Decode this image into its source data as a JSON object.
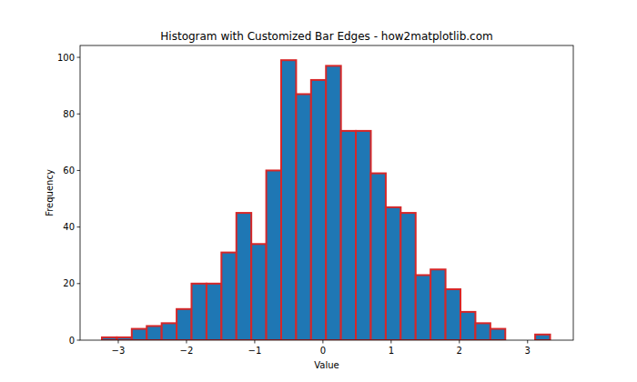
{
  "chart_data": {
    "type": "histogram",
    "title": "Histogram with Customized Bar Edges - how2matplotlib.com",
    "x_label": "Value",
    "y_label": "Frequency",
    "bins": [
      -3.24,
      -3.021,
      -2.802,
      -2.583,
      -2.364,
      -2.145,
      -1.926,
      -1.707,
      -1.488,
      -1.269,
      -1.05,
      -0.831,
      -0.612,
      -0.393,
      -0.174,
      0.045,
      0.264,
      0.483,
      0.702,
      0.921,
      1.14,
      1.359,
      1.578,
      1.797,
      2.016,
      2.235,
      2.454,
      2.673,
      2.892,
      3.111,
      3.33
    ],
    "values": [
      1,
      1,
      4,
      5,
      6,
      11,
      20,
      20,
      31,
      45,
      34,
      60,
      99,
      87,
      92,
      97,
      74,
      74,
      59,
      47,
      45,
      23,
      25,
      18,
      10,
      6,
      4,
      0,
      0,
      2
    ],
    "color": "#1f77b4",
    "xlim": [
      -3.56,
      3.67
    ],
    "xticks": [
      -3,
      -2,
      -1,
      0,
      1,
      2,
      3
    ],
    "ylim": [
      0,
      104.2
    ],
    "yticks": [
      0,
      20,
      40,
      60,
      80,
      100
    ],
    "grid": false
  }
}
